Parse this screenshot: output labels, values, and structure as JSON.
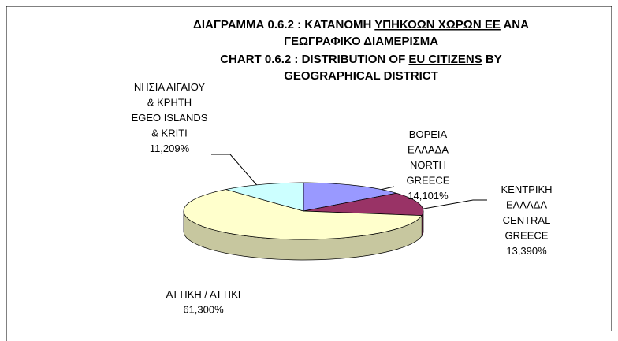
{
  "chart_data": {
    "type": "pie3d",
    "title": [
      [
        {
          "text": "ΔΙΑΓΡΑΜΜΑ 0.6.2 : ΚΑΤΑΝΟΜΗ "
        },
        {
          "text": "ΥΠΗΚΟΩΝ ΧΩΡΩΝ ΕΕ",
          "underline": true
        },
        {
          "text": " ΑΝΑ"
        }
      ],
      [
        {
          "text": "ΓΕΩΓΡΑΦΙΚΟ ΔΙΑΜΕΡΙΣΜΑ"
        }
      ],
      [
        {
          "text": "CHART 0.6.2 : DISTRIBUTION OF "
        },
        {
          "text": "EU CITIZENS",
          "underline": true
        },
        {
          "text": " BY"
        }
      ],
      [
        {
          "text": "GEOGRAPHICAL DISTRICT"
        }
      ]
    ],
    "categories": [
      [
        "ΒΟΡΕΙΑ",
        "ΕΛΛΑΔΑ",
        "NORTH",
        "GREECE"
      ],
      [
        "ΚΕΝΤΡΙΚΗ",
        "ΕΛΛΑΔΑ",
        "CENTRAL",
        "GREECE"
      ],
      [
        "ΑΤΤΙΚΗ / ΑΤΤΙΚΙ"
      ],
      [
        "ΝΗΣΙΑ ΑΙΓΑΙΟΥ",
        "& ΚΡΗΤΗ",
        "EGEO ISLANDS",
        "& KRITI"
      ]
    ],
    "values": [
      14.101,
      13.39,
      61.3,
      11.209
    ],
    "value_labels": [
      "14,101%",
      "13,390%",
      "61,300%",
      "11,209%"
    ],
    "colors": [
      "#9999ff",
      "#993366",
      "#ffffcc",
      "#ccffff"
    ]
  }
}
